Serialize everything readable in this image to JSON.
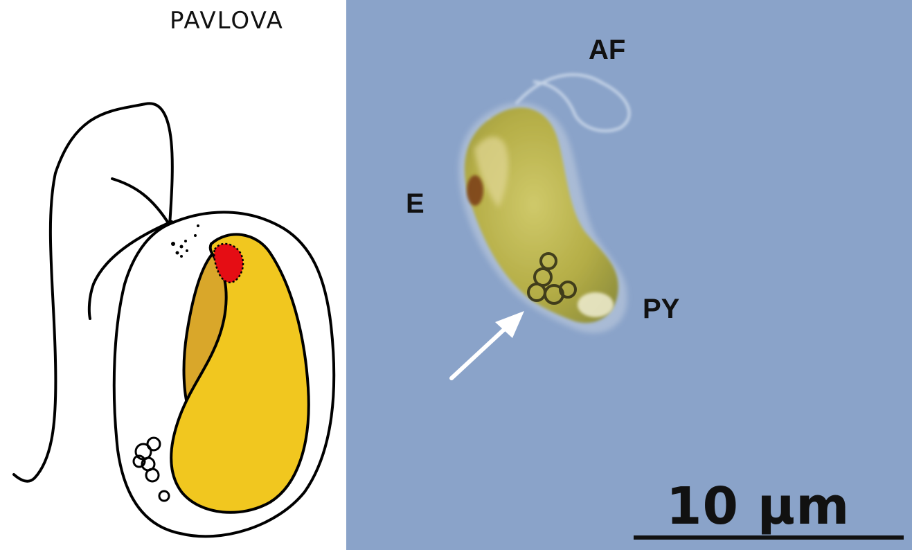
{
  "drawing": {
    "title": "PAVLOVA",
    "colors": {
      "chloroplast": "#f1c71f",
      "chloroplast_shadow": "#d9a72a",
      "eyespot": "#e50d14",
      "outline": "#000000"
    }
  },
  "micrograph": {
    "labels": {
      "af": "AF",
      "e": "E",
      "py": "PY"
    },
    "scale_bar": {
      "text": "10 μm"
    },
    "colors": {
      "background": "#8aa3c9",
      "cell": "#b8b24a",
      "eyespot": "#7a3a12",
      "arrow": "#ffffff"
    }
  }
}
